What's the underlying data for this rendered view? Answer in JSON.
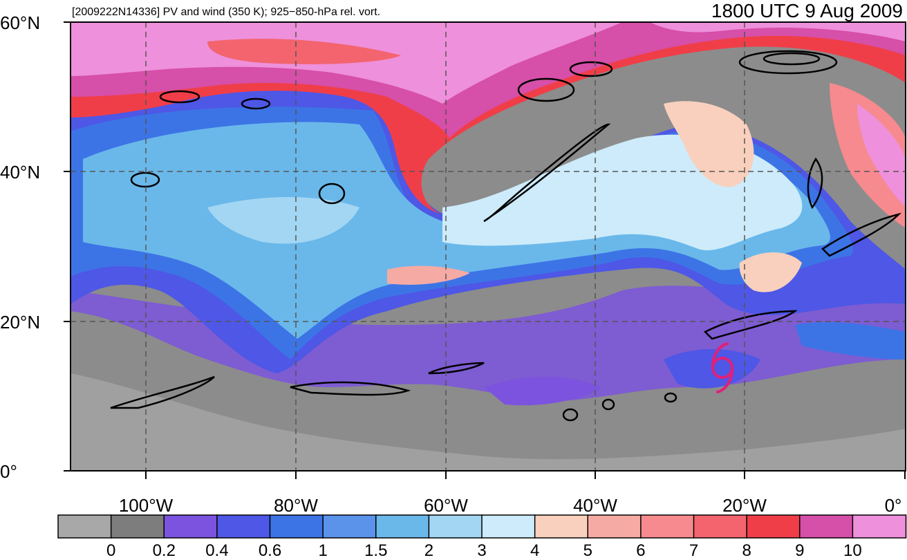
{
  "header": {
    "left_title": "[2009222N14336] PV and wind (350 K); 925−850-hPa rel. vort.",
    "right_title": "1800 UTC 9 Aug 2009"
  },
  "axes": {
    "lat_labels": [
      "60°N",
      "40°N",
      "20°N",
      "0°"
    ],
    "lat_values": [
      60,
      40,
      20,
      0
    ],
    "lon_labels": [
      "100°W",
      "80°W",
      "60°W",
      "40°W",
      "20°W",
      "0°"
    ],
    "lon_values": [
      -100,
      -80,
      -60,
      -40,
      -20,
      0
    ],
    "lon_range": [
      -110,
      0
    ],
    "lat_range": [
      0,
      60
    ]
  },
  "colorbar": {
    "labels": [
      "0",
      "0.2",
      "0.4",
      "0.6",
      "1",
      "1.5",
      "2",
      "3",
      "4",
      "5",
      "6",
      "7",
      "8",
      "9",
      "10"
    ],
    "colors": [
      "#a8a8a8",
      "#7d7d7d",
      "#7b53de",
      "#4e57e6",
      "#3c74e6",
      "#5b92ea",
      "#6ab8ea",
      "#a3d6f3",
      "#cdebfa",
      "#f9d0bd",
      "#f6aaa4",
      "#f68a8e",
      "#f3646e",
      "#f03e48",
      "#d64fa8",
      "#ee90dc"
    ]
  },
  "map": {
    "storm_symbol_color": "#e0207a",
    "storm_symbol": "tropical-storm-icon",
    "grid_style": "dashed"
  }
}
